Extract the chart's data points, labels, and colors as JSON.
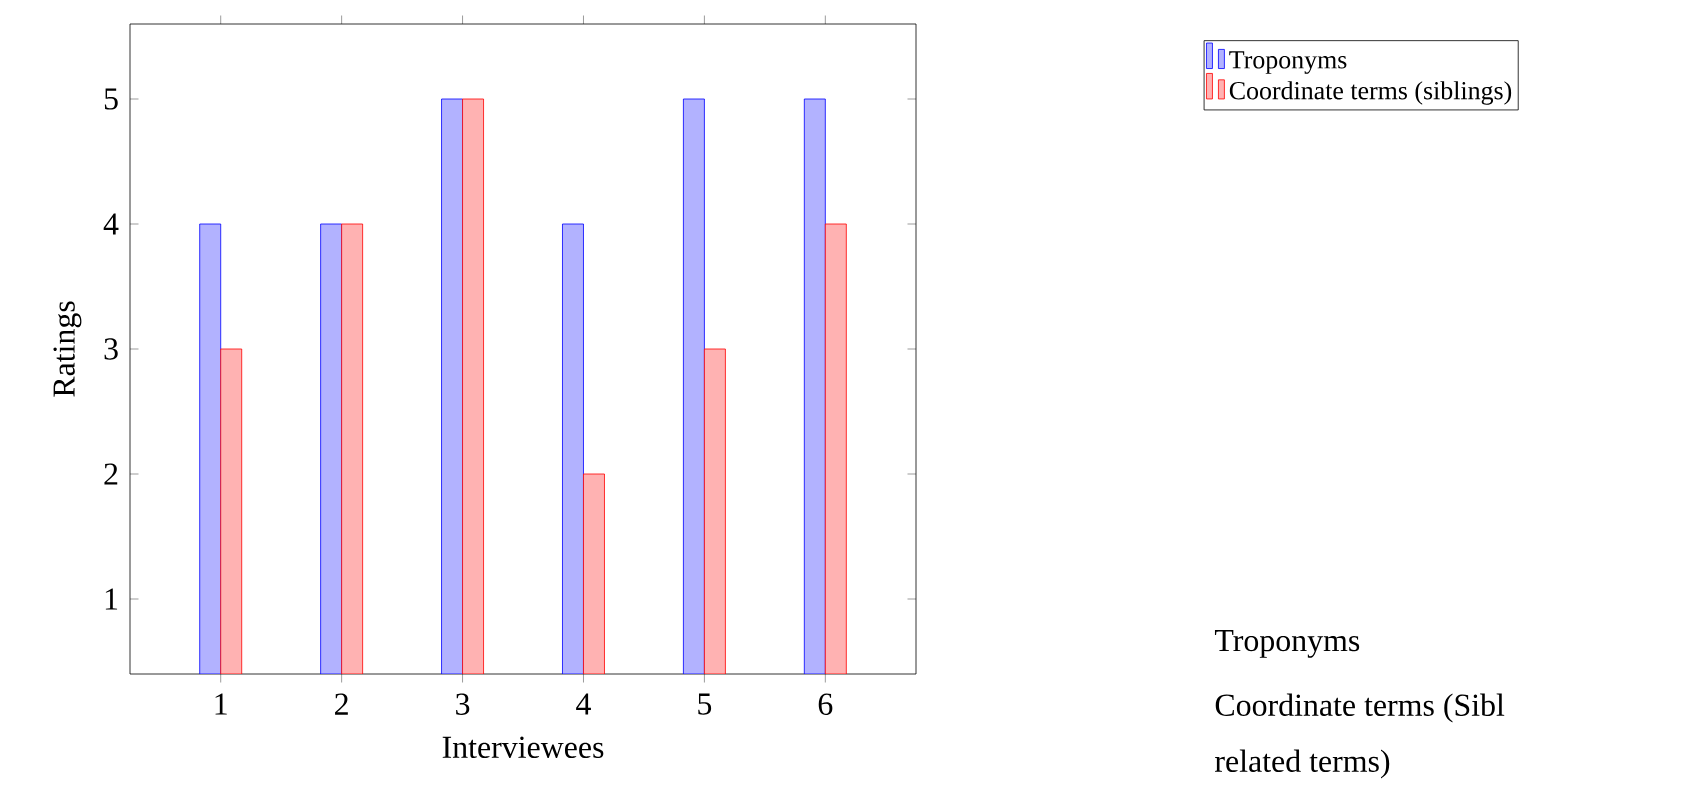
{
  "chart_data": {
    "type": "bar",
    "xlabel": "Interviewees",
    "ylabel": "Ratings",
    "categories": [
      "1",
      "2",
      "3",
      "4",
      "5",
      "6"
    ],
    "series": [
      {
        "name": "Troponyms",
        "color": "#b2b2ff",
        "values": [
          4,
          4,
          5,
          4,
          5,
          5
        ]
      },
      {
        "name": "Coordinate terms (siblings)",
        "color": "#ffb2b2",
        "values": [
          3,
          4,
          5,
          2,
          3,
          4
        ]
      }
    ],
    "ylim": [
      0.4,
      5.6
    ],
    "yticks": [
      1,
      2,
      3,
      4,
      5
    ],
    "legend": "top right",
    "annotations": [
      "Troponyms",
      "Coordinate terms (Sibl",
      "related terms)"
    ]
  }
}
